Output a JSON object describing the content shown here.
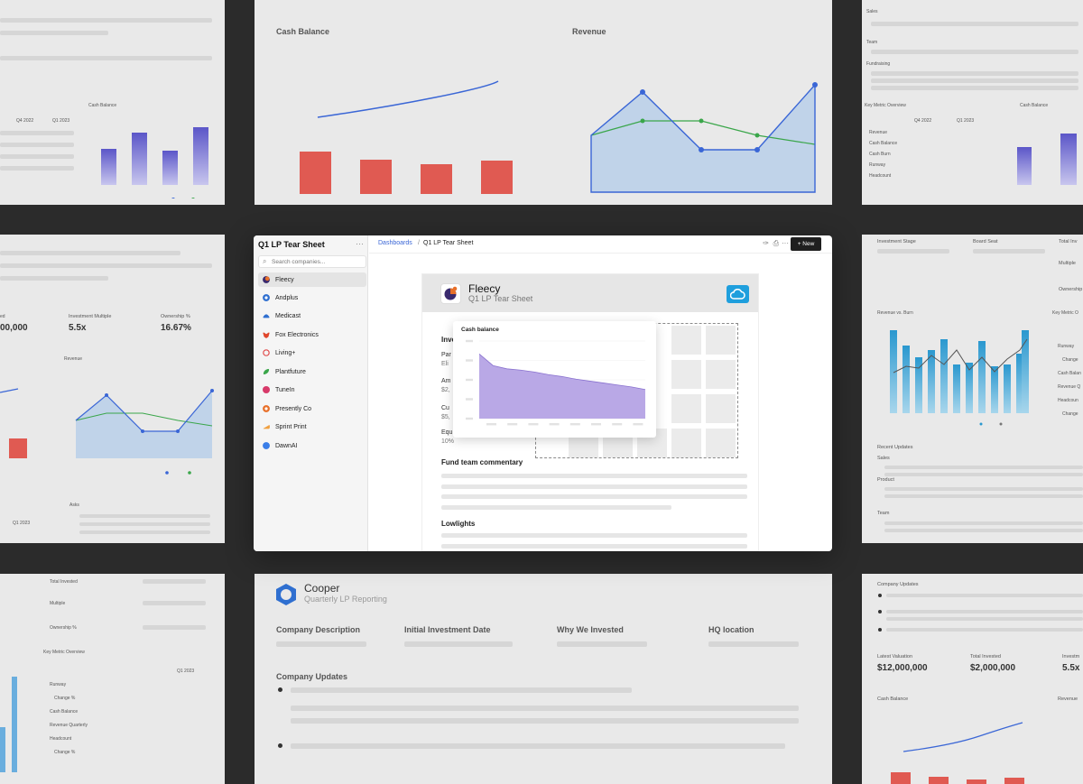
{
  "background": {
    "tile_top_center": {
      "left_title": "Cash Balance",
      "right_title": "Revenue"
    },
    "tile_top_left": {
      "chart_title": "Cash Balance",
      "col1": "Q4 2022",
      "col2": "Q1 2023"
    },
    "tile_top_right": {
      "sales": "Sales",
      "team": "Team",
      "fundraising": "Fundraising",
      "overview": "Key Metric Overview",
      "cash": "Cash Balance",
      "col1": "Q4 2022",
      "col2": "Q1 2023",
      "rows": [
        "Revenue",
        "Cash Balance",
        "Cash Burn",
        "Runway",
        "Headcount"
      ]
    },
    "tile_mid_left": {
      "label1": "Investment Multiple",
      "value1": "5.5x",
      "label2": "Ownership %",
      "value2": "16.67%",
      "partial_value": "00,000",
      "partial_label": "ed",
      "revenue": "Revenue",
      "asks": "Asks",
      "quarter": "Q1 2023"
    },
    "tile_mid_right": {
      "stage": "Investment Stage",
      "board": "Board Seat",
      "total": "Total Inv",
      "multiple": "Multiple",
      "ownership": "Ownership",
      "rev_burn": "Revenue vs. Burn",
      "key_metric": "Key Metric O",
      "runway": "Runway",
      "change1": "Change",
      "cash_bal": "Cash Balan",
      "rev_q": "Revenue Q",
      "headcount": "Headcoun",
      "change2": "Change",
      "recent": "Recent Updates",
      "sales": "Sales",
      "product": "Product",
      "team": "Team"
    },
    "tile_bottom_left": {
      "total": "Total Invested",
      "multiple": "Multiple",
      "ownership": "Ownership %",
      "overview": "Key Metric Overview",
      "quarter": "Q1 2023",
      "rows": [
        "Runway",
        "Change %",
        "Cash Balance",
        "Revenue Quarterly",
        "Headcount",
        "Change %"
      ]
    },
    "tile_bottom_center": {
      "title": "Cooper",
      "subtitle": "Quarterly LP Reporting",
      "col1": "Company Description",
      "col2": "Initial Investment Date",
      "col3": "Why We Invested",
      "col4": "HQ location",
      "updates": "Company Updates"
    },
    "tile_bottom_right": {
      "updates": "Company Updates",
      "lv_label": "Latest Valuation",
      "lv_value": "$12,000,000",
      "ti_label": "Total Invested",
      "ti_value": "$2,000,000",
      "inv_label": "Investm",
      "inv_value": "5.5x",
      "cash": "Cash Balance",
      "revenue": "Revenue"
    }
  },
  "sidebar": {
    "title": "Q1 LP Tear Sheet",
    "more": "···",
    "search_placeholder": "Search companies...",
    "companies": [
      {
        "name": "Fleecy",
        "color": "#e8702a"
      },
      {
        "name": "Andplus",
        "color": "#2f6fd0"
      },
      {
        "name": "Medicast",
        "color": "#2f6fd0"
      },
      {
        "name": "Fox Electronics",
        "color": "#e0462c"
      },
      {
        "name": "Living+",
        "color": "#e04a4a"
      },
      {
        "name": "Plantfuture",
        "color": "#3aa64a"
      },
      {
        "name": "TuneIn",
        "color": "#d83a6a"
      },
      {
        "name": "Presently Co",
        "color": "#e8702a"
      },
      {
        "name": "Sprint Print",
        "color": "#f0a040"
      },
      {
        "name": "DawnAI",
        "color": "#3a7ee8"
      }
    ]
  },
  "topbar": {
    "breadcrumb_root": "Dashboards",
    "separator": "/",
    "breadcrumb_current": "Q1 LP Tear Sheet",
    "new_label": "+ New"
  },
  "document": {
    "company": "Fleecy",
    "subtitle": "Q1 LP Tear Sheet",
    "section_partial": "Inve",
    "fields": [
      {
        "label": "Par",
        "value": "Eli"
      },
      {
        "label": "Am",
        "value": "$2,"
      },
      {
        "label": "Cu",
        "value": "$5,"
      },
      {
        "label": "Equ",
        "value": "10%"
      }
    ],
    "commentary_heading": "Fund team commentary",
    "lowlights_heading": "Lowlights"
  },
  "popup_chart": {
    "chart_data": {
      "type": "area",
      "title": "Cash balance",
      "values": [
        100,
        82,
        77,
        75,
        72,
        68,
        65,
        61,
        58,
        55,
        52,
        49,
        45
      ],
      "ylim": [
        0,
        120
      ],
      "color": "#b9a8e6"
    }
  },
  "colors": {
    "accent": "#3a66d6",
    "dark": "#1f1f1f",
    "cloud": "#1f9fdd"
  }
}
